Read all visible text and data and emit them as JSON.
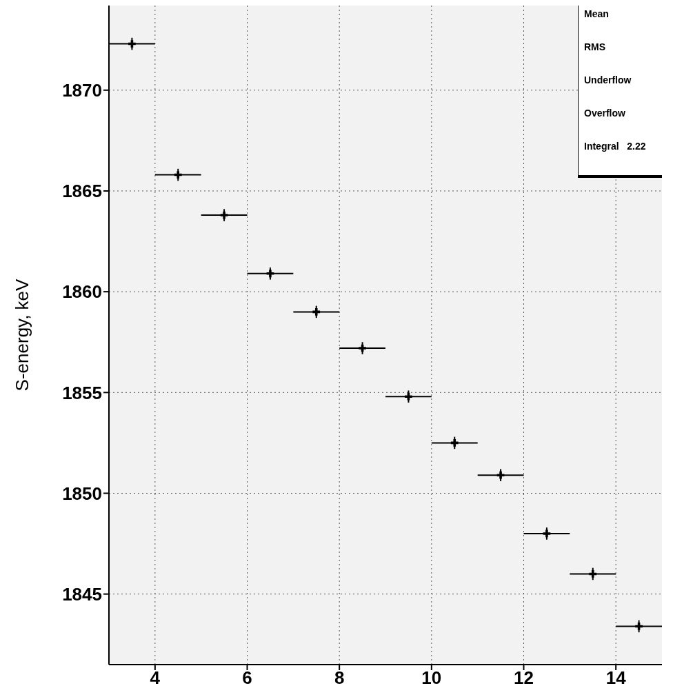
{
  "chart_data": {
    "type": "scatter",
    "ylabel": "S-energy, keV",
    "x": [
      3.5,
      4.5,
      5.5,
      6.5,
      7.5,
      8.5,
      9.5,
      10.5,
      11.5,
      12.5,
      13.5,
      14.5
    ],
    "series": [
      {
        "color": "#000000",
        "values": [
          1872.3,
          1865.8,
          1863.8,
          1860.9,
          1859.0,
          1857.2,
          1854.8,
          1852.5,
          1850.9,
          1848.0,
          1846.0,
          1843.4
        ],
        "xerrors": [
          0.5,
          0.5,
          0.5,
          0.5,
          0.5,
          0.5,
          0.5,
          0.5,
          0.5,
          0.5,
          0.5,
          0.5
        ],
        "errors": [
          0.3,
          0.3,
          0.3,
          0.3,
          0.3,
          0.3,
          0.3,
          0.3,
          0.3,
          0.3,
          0.3,
          0.3
        ]
      }
    ],
    "xlim": [
      3,
      15
    ],
    "xticks": [
      4,
      6,
      8,
      10,
      12,
      14
    ],
    "ylim": [
      1841.5,
      1874.2
    ],
    "yticks": [
      1845,
      1850,
      1855,
      1860,
      1865,
      1870
    ],
    "grid": true,
    "marker": "cross",
    "annotations": [
      "Mean",
      "RMS",
      "Underflow",
      "Overflow",
      "Integral   2.22"
    ]
  }
}
